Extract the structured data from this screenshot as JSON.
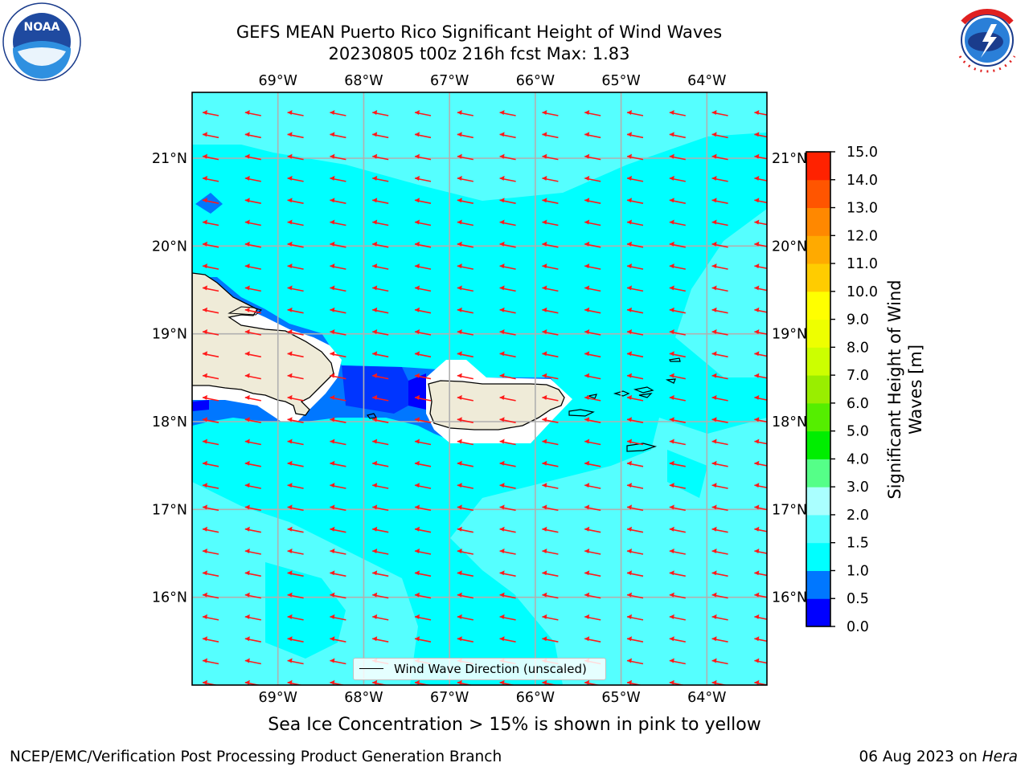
{
  "title": {
    "line1": "GEFS MEAN Puerto Rico Significant Height of Wind Waves",
    "line2": "20230805 t00z 216h fcst   Max: 1.83"
  },
  "map": {
    "lon_top_labels": [
      "69°W",
      "68°W",
      "67°W",
      "66°W",
      "65°W",
      "64°W"
    ],
    "lon_bottom_labels": [
      "69°W",
      "68°W",
      "67°W",
      "66°W",
      "65°W",
      "64°W"
    ],
    "lat_left_labels": [
      "21°N",
      "20°N",
      "19°N",
      "18°N",
      "17°N",
      "16°N"
    ],
    "lat_right_labels": [
      "21°N",
      "20°N",
      "19°N",
      "18°N",
      "17°N",
      "16°N"
    ],
    "lon_range": [
      -70.0,
      -63.3
    ],
    "lat_range": [
      15.0,
      21.75
    ],
    "vector_field": "wind wave direction toward west (easterly waves)",
    "legend_label": "Wind Wave Direction (unscaled)"
  },
  "colorbar": {
    "title": "Significant Height of Wind Waves [m]",
    "title_line1": "Significant Height of Wind",
    "title_line2": "Waves [m]",
    "tick_labels": [
      "15.0",
      "14.0",
      "13.0",
      "12.0",
      "11.0",
      "10.0",
      "9.0",
      "8.0",
      "7.0",
      "6.0",
      "5.0",
      "4.0",
      "3.0",
      "2.0",
      "1.5",
      "1.0",
      "0.5",
      "0.0"
    ],
    "levels": [
      0.0,
      0.5,
      1.0,
      1.5,
      2.0,
      3.0,
      4.0,
      5.0,
      6.0,
      7.0,
      8.0,
      9.0,
      10.0,
      11.0,
      12.0,
      13.0,
      14.0,
      15.0
    ],
    "colors": [
      "#0000ff",
      "#0077ff",
      "#00ffff",
      "#55ffff",
      "#aaffff",
      "#55ff88",
      "#00ee00",
      "#55ee00",
      "#99ee00",
      "#ccff00",
      "#eeff00",
      "#ffff00",
      "#ffcc00",
      "#ffaa00",
      "#ff8800",
      "#ff5500",
      "#ff2200"
    ]
  },
  "ice_note": "Sea Ice Concentration > 15% is shown in pink to yellow",
  "footer": {
    "left": "NCEP/EMC/Verification Post Processing Product Generation Branch",
    "right_date": "06 Aug 2023 on ",
    "right_host": "Hera"
  },
  "logos": {
    "left": "NOAA",
    "right": "NATIONAL WEATHER SERVICE"
  }
}
